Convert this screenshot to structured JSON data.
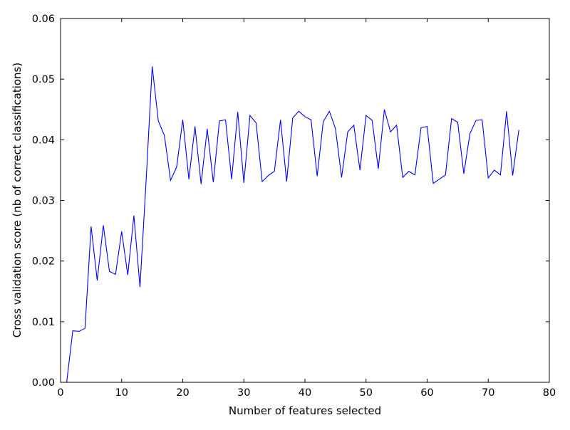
{
  "chart_data": {
    "type": "line",
    "title": "",
    "xlabel": "Number of features selected",
    "ylabel": "Cross validation score (nb of correct classifications)",
    "xlim": [
      0,
      80
    ],
    "ylim": [
      0.0,
      0.06
    ],
    "x_ticks": [
      0,
      10,
      20,
      30,
      40,
      50,
      60,
      70,
      80
    ],
    "x_tick_labels": [
      "0",
      "10",
      "20",
      "30",
      "40",
      "50",
      "60",
      "70",
      "80"
    ],
    "y_ticks": [
      0.0,
      0.01,
      0.02,
      0.03,
      0.04,
      0.05,
      0.06
    ],
    "y_tick_labels": [
      "0.00",
      "0.01",
      "0.02",
      "0.03",
      "0.04",
      "0.05",
      "0.06"
    ],
    "grid": false,
    "legend": "none",
    "series": [
      {
        "color": "#0000ff",
        "x": [
          1,
          2,
          3,
          4,
          5,
          6,
          7,
          8,
          9,
          10,
          11,
          12,
          13,
          14,
          15,
          16,
          17,
          18,
          19,
          20,
          21,
          22,
          23,
          24,
          25,
          26,
          27,
          28,
          29,
          30,
          31,
          32,
          33,
          34,
          35,
          36,
          37,
          38,
          39,
          40,
          41,
          42,
          43,
          44,
          45,
          46,
          47,
          48,
          49,
          50,
          51,
          52,
          53,
          54,
          55,
          56,
          57,
          58,
          59,
          60,
          61,
          62,
          63,
          64,
          65,
          66,
          67,
          68,
          69,
          70,
          71,
          72,
          73,
          74,
          75
        ],
        "y": [
          0.0,
          0.0085,
          0.0084,
          0.0089,
          0.0257,
          0.0168,
          0.0259,
          0.0183,
          0.0178,
          0.0249,
          0.0177,
          0.0275,
          0.0157,
          0.0332,
          0.0521,
          0.0431,
          0.0407,
          0.0333,
          0.0355,
          0.0433,
          0.0335,
          0.0422,
          0.0327,
          0.0418,
          0.033,
          0.0431,
          0.0433,
          0.0335,
          0.0446,
          0.0329,
          0.044,
          0.0428,
          0.0331,
          0.0341,
          0.0348,
          0.0433,
          0.0331,
          0.0436,
          0.0447,
          0.0438,
          0.0433,
          0.034,
          0.043,
          0.0447,
          0.0418,
          0.0338,
          0.0413,
          0.0424,
          0.035,
          0.044,
          0.0432,
          0.0352,
          0.045,
          0.0413,
          0.0424,
          0.0338,
          0.0348,
          0.0342,
          0.042,
          0.0422,
          0.0328,
          0.0335,
          0.0342,
          0.0435,
          0.0429,
          0.0344,
          0.041,
          0.0432,
          0.0433,
          0.0337,
          0.035,
          0.0342,
          0.0447,
          0.0341,
          0.0416
        ]
      }
    ]
  }
}
